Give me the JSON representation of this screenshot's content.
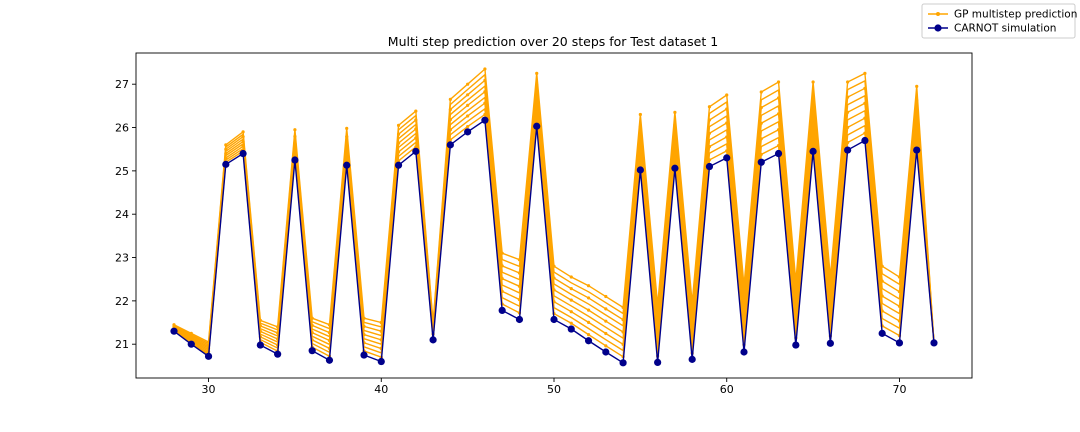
{
  "chart_data": {
    "type": "line",
    "title": "Multi step prediction over 20 steps for Test dataset 1",
    "xlabel": "",
    "ylabel": "",
    "xlim": [
      25.8,
      74.2
    ],
    "ylim": [
      20.22,
      27.72
    ],
    "xticks": [
      30,
      40,
      50,
      60,
      70
    ],
    "yticks": [
      21,
      22,
      23,
      24,
      25,
      26,
      27
    ],
    "grid": false,
    "legend_position": "upper-right-outside",
    "series": [
      {
        "name": "CARNOT simulation",
        "color": "#00008b",
        "x": [
          28,
          29,
          30,
          31,
          32,
          33,
          34,
          35,
          36,
          37,
          38,
          39,
          40,
          41,
          42,
          43,
          44,
          45,
          46,
          47,
          48,
          49,
          50,
          51,
          52,
          53,
          54,
          55,
          56,
          57,
          58,
          59,
          60,
          61,
          62,
          63,
          64,
          65,
          66,
          67,
          68,
          69,
          70,
          71,
          72
        ],
        "values": [
          21.3,
          21.0,
          20.72,
          25.15,
          25.4,
          20.98,
          20.77,
          25.25,
          20.85,
          20.63,
          25.13,
          20.75,
          20.6,
          25.13,
          25.45,
          21.1,
          25.6,
          25.9,
          26.17,
          21.78,
          21.57,
          26.03,
          21.57,
          21.35,
          21.08,
          20.82,
          20.57,
          25.02,
          20.58,
          25.06,
          20.65,
          25.1,
          25.3,
          20.82,
          25.2,
          25.4,
          20.98,
          25.45,
          21.02,
          25.48,
          25.7,
          21.25,
          21.03,
          25.48,
          21.03
        ]
      },
      {
        "name": "GP multistep prediction",
        "color": "#ffa500",
        "description_values": "20-step-ahead prediction fans from each simulation point",
        "fan_top": [
          21.45,
          21.25,
          21.05,
          25.6,
          25.9,
          21.55,
          21.4,
          25.95,
          21.6,
          21.45,
          25.98,
          21.6,
          21.5,
          26.05,
          26.38,
          21.5,
          26.65,
          27.0,
          27.35,
          23.1,
          22.95,
          27.25,
          22.8,
          22.55,
          22.35,
          22.1,
          21.85,
          26.3,
          21.9,
          26.35,
          21.95,
          26.48,
          26.75,
          22.35,
          26.82,
          27.05,
          22.45,
          27.05,
          22.55,
          27.05,
          27.25,
          22.8,
          22.55,
          26.95,
          21.03
        ]
      }
    ]
  }
}
